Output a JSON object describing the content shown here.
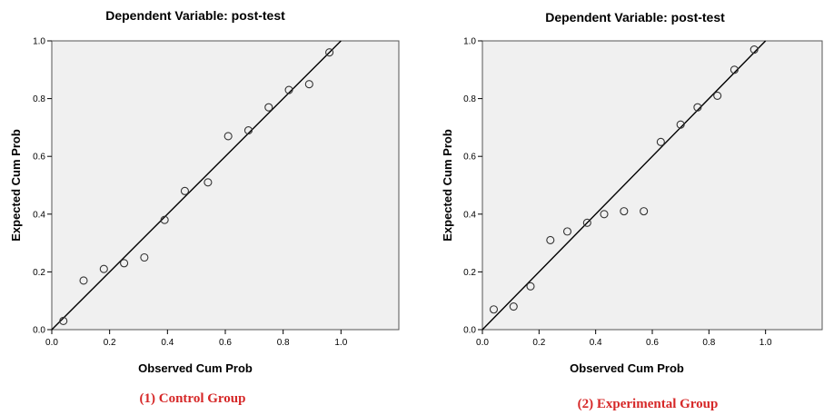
{
  "chart_data": [
    {
      "type": "scatter",
      "title": "Dependent Variable: post-test",
      "xlabel": "Observed Cum Prob",
      "ylabel": "Expected Cum Prob",
      "caption": "(1) Control Group",
      "x_ticks": [
        "0.0",
        "0.2",
        "0.4",
        "0.6",
        "0.8",
        "1.0"
      ],
      "y_ticks": [
        "0.0",
        "0.2",
        "0.4",
        "0.6",
        "0.8",
        "1.0"
      ],
      "xlim": [
        0,
        1.2
      ],
      "ylim": [
        0,
        1.0
      ],
      "reference_line": [
        [
          0,
          0
        ],
        [
          1,
          1
        ]
      ],
      "points": [
        {
          "x": 0.04,
          "y": 0.03
        },
        {
          "x": 0.11,
          "y": 0.17
        },
        {
          "x": 0.18,
          "y": 0.21
        },
        {
          "x": 0.25,
          "y": 0.23
        },
        {
          "x": 0.32,
          "y": 0.25
        },
        {
          "x": 0.39,
          "y": 0.38
        },
        {
          "x": 0.46,
          "y": 0.48
        },
        {
          "x": 0.54,
          "y": 0.51
        },
        {
          "x": 0.61,
          "y": 0.67
        },
        {
          "x": 0.68,
          "y": 0.69
        },
        {
          "x": 0.75,
          "y": 0.77
        },
        {
          "x": 0.82,
          "y": 0.83
        },
        {
          "x": 0.89,
          "y": 0.85
        },
        {
          "x": 0.96,
          "y": 0.96
        }
      ],
      "colors": {
        "plot_bg": "#f0f0f0",
        "marker": "#333333",
        "line": "#000000",
        "caption": "#d62828"
      },
      "grid": false
    },
    {
      "type": "scatter",
      "title": "Dependent Variable: post-test",
      "xlabel": "Observed Cum Prob",
      "ylabel": "Expected Cum Prob",
      "caption": "(2) Experimental Group",
      "x_ticks": [
        "0.0",
        "0.2",
        "0.4",
        "0.6",
        "0.8",
        "1.0"
      ],
      "y_ticks": [
        "0.0",
        "0.2",
        "0.4",
        "0.6",
        "0.8",
        "1.0"
      ],
      "xlim": [
        0,
        1.2
      ],
      "ylim": [
        0,
        1.0
      ],
      "reference_line": [
        [
          0,
          0
        ],
        [
          1,
          1
        ]
      ],
      "points": [
        {
          "x": 0.04,
          "y": 0.07
        },
        {
          "x": 0.11,
          "y": 0.08
        },
        {
          "x": 0.17,
          "y": 0.15
        },
        {
          "x": 0.24,
          "y": 0.31
        },
        {
          "x": 0.3,
          "y": 0.34
        },
        {
          "x": 0.37,
          "y": 0.37
        },
        {
          "x": 0.43,
          "y": 0.4
        },
        {
          "x": 0.5,
          "y": 0.41
        },
        {
          "x": 0.57,
          "y": 0.41
        },
        {
          "x": 0.63,
          "y": 0.65
        },
        {
          "x": 0.7,
          "y": 0.71
        },
        {
          "x": 0.76,
          "y": 0.77
        },
        {
          "x": 0.83,
          "y": 0.81
        },
        {
          "x": 0.89,
          "y": 0.9
        },
        {
          "x": 0.96,
          "y": 0.97
        }
      ],
      "colors": {
        "plot_bg": "#f0f0f0",
        "marker": "#333333",
        "line": "#000000",
        "caption": "#d62828"
      },
      "grid": false
    }
  ]
}
